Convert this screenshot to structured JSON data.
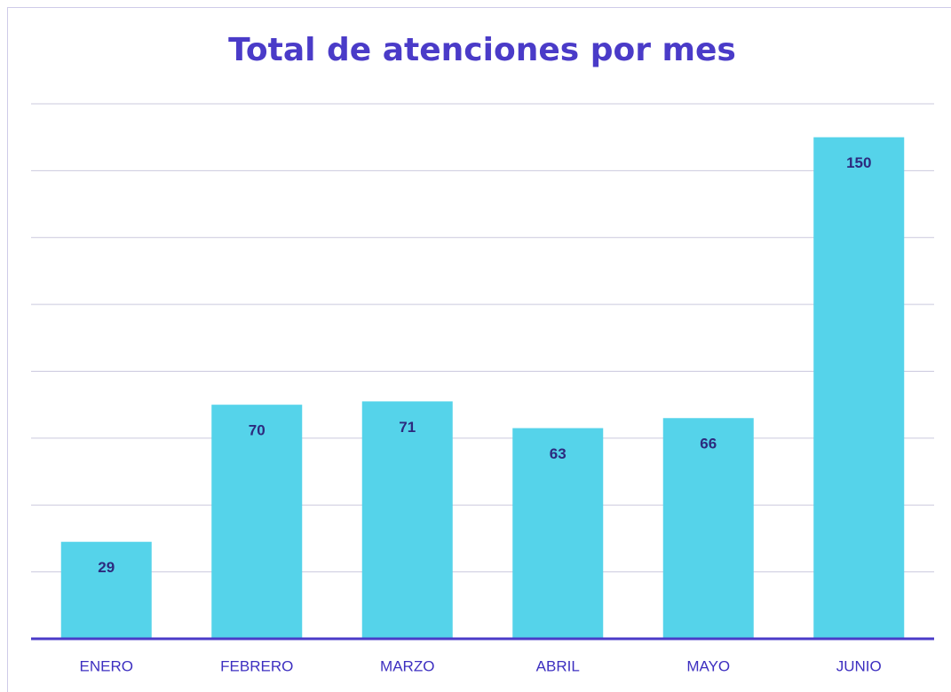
{
  "chart_data": {
    "type": "bar",
    "title": "Total de atenciones por mes",
    "categories": [
      "ENERO",
      "FEBRERO",
      "MARZO",
      "ABRIL",
      "MAYO",
      "JUNIO"
    ],
    "values": [
      29,
      70,
      71,
      63,
      66,
      150
    ],
    "color": "#55d3ea",
    "ylim": [
      0,
      160
    ],
    "yticks": [
      0,
      20,
      40,
      60,
      80,
      100,
      120,
      140,
      160
    ],
    "grid": true
  }
}
